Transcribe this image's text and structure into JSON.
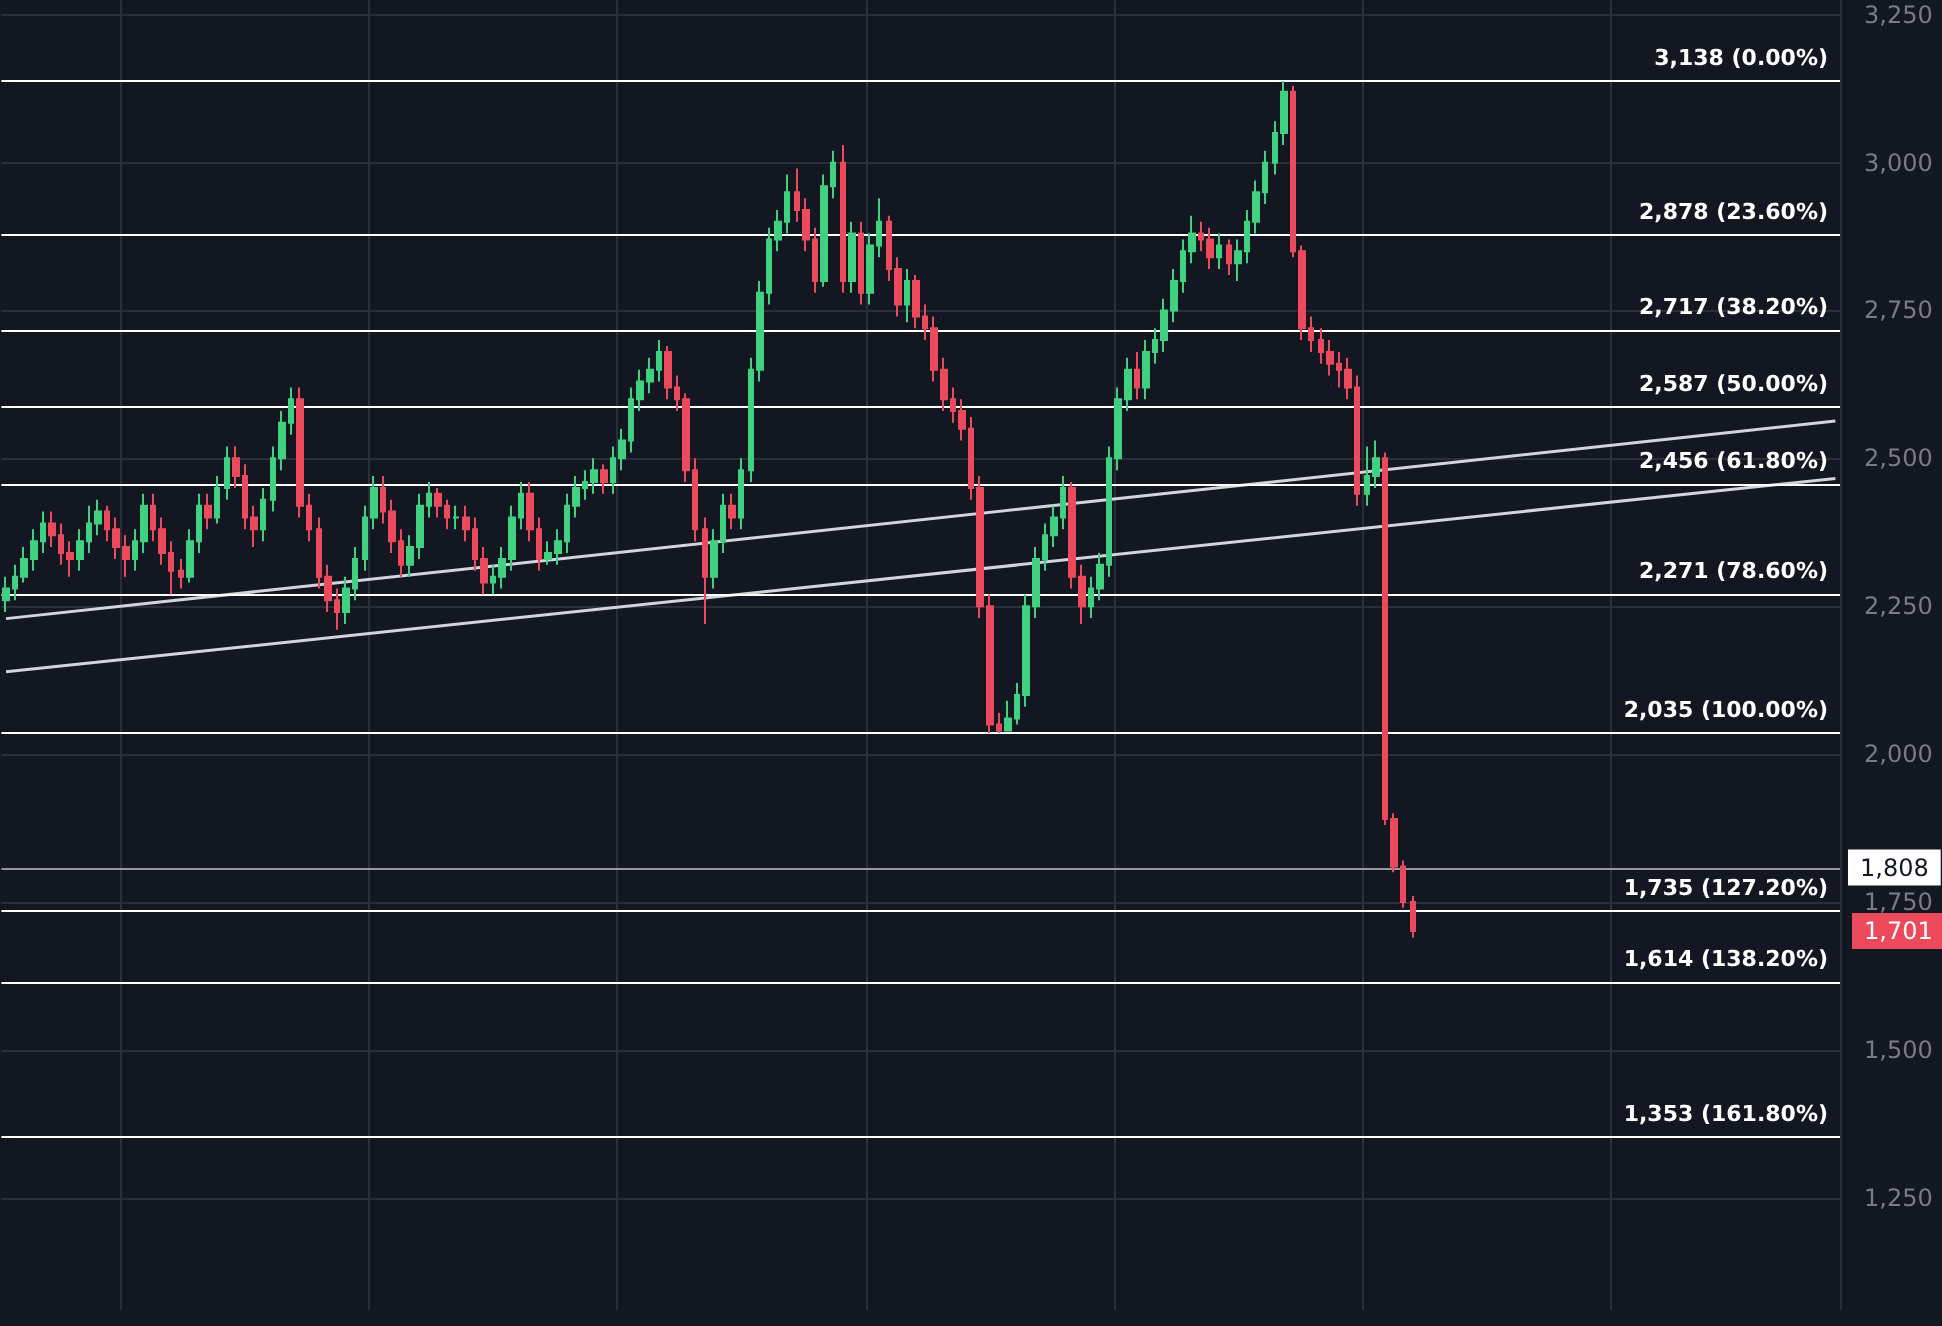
{
  "chart_data": {
    "type": "candlestick",
    "categories": [
      null,
      null,
      null,
      null,
      null,
      null,
      null,
      null,
      null,
      null,
      null,
      null,
      null,
      null,
      null,
      null,
      null,
      null,
      null,
      null,
      null,
      null,
      null,
      null,
      null,
      null,
      null,
      null,
      null,
      null,
      null,
      null,
      null,
      null,
      null,
      null,
      null,
      null,
      null,
      null,
      null,
      null,
      null,
      null,
      null,
      null,
      null,
      null,
      null,
      null,
      null,
      null,
      null,
      null,
      null,
      null,
      null,
      null,
      null,
      null,
      null,
      null,
      null,
      null,
      null,
      null,
      null,
      null,
      null,
      null,
      null,
      null,
      null,
      null,
      null,
      null,
      null,
      null,
      null,
      null,
      null,
      null,
      null,
      null,
      null,
      null,
      null,
      null,
      null,
      null,
      null,
      null,
      null,
      null,
      null,
      null,
      null,
      null,
      null,
      null,
      null,
      null,
      null,
      null,
      null,
      null,
      null,
      null,
      null,
      null,
      null,
      null,
      null,
      null,
      null,
      null,
      null,
      null,
      null,
      null,
      null,
      null,
      null,
      null,
      null,
      null,
      null,
      null,
      null,
      null,
      null,
      null,
      null,
      null,
      null,
      null,
      null,
      null,
      null,
      null,
      null,
      null,
      null,
      null,
      null,
      null,
      null,
      null,
      null,
      null,
      null,
      null,
      null,
      null,
      null,
      null,
      null,
      null,
      null,
      null,
      null,
      null,
      null,
      null,
      null,
      null,
      null,
      null,
      null,
      null,
      null,
      null,
      null,
      null,
      null,
      null,
      null,
      null,
      null,
      null,
      null,
      null,
      null,
      null,
      null,
      null,
      null,
      null,
      null,
      null,
      null,
      null,
      null,
      null,
      null,
      null,
      null,
      null,
      null,
      null
    ],
    "ohlc": [
      [
        2260,
        2300,
        2240,
        2280
      ],
      [
        2280,
        2320,
        2260,
        2300
      ],
      [
        2300,
        2350,
        2290,
        2330
      ],
      [
        2330,
        2380,
        2310,
        2360
      ],
      [
        2360,
        2410,
        2340,
        2390
      ],
      [
        2390,
        2410,
        2350,
        2370
      ],
      [
        2370,
        2390,
        2320,
        2340
      ],
      [
        2340,
        2360,
        2300,
        2330
      ],
      [
        2330,
        2380,
        2310,
        2360
      ],
      [
        2360,
        2420,
        2340,
        2390
      ],
      [
        2390,
        2430,
        2370,
        2410
      ],
      [
        2410,
        2420,
        2360,
        2380
      ],
      [
        2380,
        2400,
        2330,
        2350
      ],
      [
        2350,
        2370,
        2300,
        2330
      ],
      [
        2330,
        2380,
        2310,
        2360
      ],
      [
        2360,
        2440,
        2340,
        2420
      ],
      [
        2420,
        2440,
        2360,
        2380
      ],
      [
        2380,
        2400,
        2320,
        2340
      ],
      [
        2340,
        2360,
        2270,
        2310
      ],
      [
        2310,
        2330,
        2280,
        2300
      ],
      [
        2300,
        2380,
        2290,
        2360
      ],
      [
        2360,
        2440,
        2340,
        2420
      ],
      [
        2420,
        2440,
        2380,
        2400
      ],
      [
        2400,
        2470,
        2390,
        2450
      ],
      [
        2450,
        2520,
        2430,
        2500
      ],
      [
        2500,
        2520,
        2450,
        2470
      ],
      [
        2470,
        2490,
        2380,
        2400
      ],
      [
        2400,
        2420,
        2350,
        2380
      ],
      [
        2380,
        2450,
        2360,
        2430
      ],
      [
        2430,
        2520,
        2410,
        2500
      ],
      [
        2500,
        2580,
        2480,
        2560
      ],
      [
        2560,
        2620,
        2540,
        2600
      ],
      [
        2600,
        2620,
        2400,
        2420
      ],
      [
        2420,
        2440,
        2360,
        2380
      ],
      [
        2380,
        2400,
        2280,
        2300
      ],
      [
        2300,
        2320,
        2240,
        2260
      ],
      [
        2260,
        2280,
        2210,
        2240
      ],
      [
        2240,
        2300,
        2220,
        2280
      ],
      [
        2280,
        2350,
        2260,
        2330
      ],
      [
        2330,
        2420,
        2310,
        2400
      ],
      [
        2400,
        2470,
        2380,
        2450
      ],
      [
        2450,
        2470,
        2390,
        2410
      ],
      [
        2410,
        2430,
        2340,
        2360
      ],
      [
        2360,
        2380,
        2300,
        2320
      ],
      [
        2320,
        2370,
        2300,
        2350
      ],
      [
        2350,
        2440,
        2330,
        2420
      ],
      [
        2420,
        2460,
        2400,
        2440
      ],
      [
        2440,
        2450,
        2400,
        2420
      ],
      [
        2420,
        2430,
        2380,
        2400
      ],
      [
        2400,
        2420,
        2380,
        2400
      ],
      [
        2400,
        2420,
        2360,
        2380
      ],
      [
        2380,
        2400,
        2310,
        2330
      ],
      [
        2330,
        2350,
        2270,
        2290
      ],
      [
        2290,
        2320,
        2270,
        2300
      ],
      [
        2300,
        2350,
        2280,
        2330
      ],
      [
        2330,
        2420,
        2310,
        2400
      ],
      [
        2400,
        2460,
        2380,
        2440
      ],
      [
        2440,
        2460,
        2360,
        2380
      ],
      [
        2380,
        2400,
        2310,
        2330
      ],
      [
        2330,
        2360,
        2320,
        2340
      ],
      [
        2340,
        2380,
        2320,
        2360
      ],
      [
        2360,
        2440,
        2340,
        2420
      ],
      [
        2420,
        2470,
        2400,
        2450
      ],
      [
        2450,
        2480,
        2430,
        2460
      ],
      [
        2460,
        2500,
        2440,
        2480
      ],
      [
        2480,
        2490,
        2440,
        2460
      ],
      [
        2460,
        2520,
        2440,
        2500
      ],
      [
        2500,
        2550,
        2480,
        2530
      ],
      [
        2530,
        2620,
        2510,
        2600
      ],
      [
        2600,
        2650,
        2580,
        2630
      ],
      [
        2630,
        2670,
        2610,
        2650
      ],
      [
        2650,
        2700,
        2630,
        2680
      ],
      [
        2680,
        2690,
        2600,
        2620
      ],
      [
        2620,
        2640,
        2580,
        2600
      ],
      [
        2600,
        2610,
        2460,
        2480
      ],
      [
        2480,
        2500,
        2360,
        2380
      ],
      [
        2380,
        2400,
        2220,
        2300
      ],
      [
        2300,
        2380,
        2280,
        2360
      ],
      [
        2360,
        2440,
        2340,
        2420
      ],
      [
        2420,
        2440,
        2380,
        2400
      ],
      [
        2400,
        2500,
        2380,
        2480
      ],
      [
        2480,
        2670,
        2460,
        2650
      ],
      [
        2650,
        2800,
        2630,
        2780
      ],
      [
        2780,
        2890,
        2760,
        2870
      ],
      [
        2870,
        2920,
        2850,
        2900
      ],
      [
        2900,
        2980,
        2880,
        2950
      ],
      [
        2950,
        2990,
        2900,
        2920
      ],
      [
        2920,
        2940,
        2850,
        2870
      ],
      [
        2870,
        2890,
        2780,
        2800
      ],
      [
        2800,
        2980,
        2790,
        2960
      ],
      [
        2960,
        3020,
        2940,
        3000
      ],
      [
        3000,
        3030,
        2780,
        2800
      ],
      [
        2800,
        2900,
        2780,
        2880
      ],
      [
        2880,
        2900,
        2760,
        2780
      ],
      [
        2780,
        2880,
        2760,
        2860
      ],
      [
        2860,
        2940,
        2840,
        2900
      ],
      [
        2900,
        2910,
        2800,
        2820
      ],
      [
        2820,
        2840,
        2740,
        2760
      ],
      [
        2760,
        2820,
        2730,
        2800
      ],
      [
        2800,
        2810,
        2720,
        2740
      ],
      [
        2740,
        2760,
        2700,
        2720
      ],
      [
        2720,
        2740,
        2630,
        2650
      ],
      [
        2650,
        2670,
        2580,
        2600
      ],
      [
        2600,
        2620,
        2560,
        2580
      ],
      [
        2580,
        2600,
        2530,
        2550
      ],
      [
        2550,
        2570,
        2430,
        2450
      ],
      [
        2450,
        2470,
        2230,
        2250
      ],
      [
        2250,
        2270,
        2035,
        2050
      ],
      [
        2050,
        2070,
        2036,
        2040
      ],
      [
        2040,
        2090,
        2038,
        2060
      ],
      [
        2060,
        2120,
        2050,
        2100
      ],
      [
        2100,
        2270,
        2080,
        2250
      ],
      [
        2250,
        2350,
        2230,
        2330
      ],
      [
        2330,
        2390,
        2310,
        2370
      ],
      [
        2370,
        2420,
        2350,
        2400
      ],
      [
        2400,
        2470,
        2380,
        2450
      ],
      [
        2450,
        2460,
        2280,
        2300
      ],
      [
        2300,
        2320,
        2220,
        2250
      ],
      [
        2250,
        2300,
        2230,
        2280
      ],
      [
        2280,
        2340,
        2260,
        2320
      ],
      [
        2320,
        2520,
        2300,
        2500
      ],
      [
        2500,
        2620,
        2480,
        2600
      ],
      [
        2600,
        2670,
        2580,
        2650
      ],
      [
        2650,
        2680,
        2600,
        2620
      ],
      [
        2620,
        2700,
        2600,
        2680
      ],
      [
        2680,
        2720,
        2660,
        2700
      ],
      [
        2700,
        2770,
        2680,
        2750
      ],
      [
        2750,
        2820,
        2730,
        2800
      ],
      [
        2800,
        2870,
        2780,
        2850
      ],
      [
        2850,
        2910,
        2830,
        2880
      ],
      [
        2880,
        2900,
        2850,
        2870
      ],
      [
        2870,
        2890,
        2820,
        2840
      ],
      [
        2840,
        2880,
        2820,
        2860
      ],
      [
        2860,
        2870,
        2810,
        2830
      ],
      [
        2830,
        2870,
        2800,
        2850
      ],
      [
        2850,
        2920,
        2830,
        2900
      ],
      [
        2900,
        2970,
        2880,
        2950
      ],
      [
        2950,
        3020,
        2930,
        3000
      ],
      [
        3000,
        3070,
        2980,
        3050
      ],
      [
        3050,
        3138,
        3030,
        3120
      ],
      [
        3120,
        3130,
        2840,
        2850
      ],
      [
        2850,
        2860,
        2700,
        2720
      ],
      [
        2720,
        2740,
        2680,
        2700
      ],
      [
        2700,
        2720,
        2660,
        2680
      ],
      [
        2680,
        2700,
        2640,
        2660
      ],
      [
        2660,
        2680,
        2620,
        2650
      ],
      [
        2650,
        2670,
        2600,
        2620
      ],
      [
        2620,
        2640,
        2420,
        2440
      ],
      [
        2440,
        2520,
        2420,
        2470
      ],
      [
        2470,
        2530,
        2450,
        2500
      ],
      [
        2500,
        2510,
        1880,
        1890
      ],
      [
        1890,
        1900,
        1800,
        1810
      ],
      [
        1810,
        1820,
        1740,
        1750
      ],
      [
        1750,
        1760,
        1690,
        1701
      ],
      null,
      null,
      null,
      null,
      null,
      null,
      null,
      null,
      null,
      null,
      null,
      null,
      null,
      null,
      null,
      null,
      null,
      null,
      null,
      null,
      null,
      null,
      null,
      null,
      null,
      null,
      null,
      null,
      null,
      null,
      null,
      null,
      null,
      null,
      null,
      null,
      null,
      null,
      null,
      null,
      null,
      null,
      null,
      null,
      null,
      null
    ],
    "series": [
      {
        "type": "line",
        "color": "#d1d4dc",
        "values": [
          2229,
          null,
          null,
          null,
          null,
          null,
          null,
          null,
          null,
          null,
          null,
          null,
          null,
          null,
          null,
          null,
          null,
          null,
          null,
          null,
          null,
          null,
          null,
          null,
          null,
          null,
          null,
          null,
          null,
          null,
          null,
          null,
          null,
          null,
          null,
          null,
          null,
          null,
          null,
          null,
          null,
          null,
          null,
          null,
          null,
          null,
          null,
          null,
          null,
          null,
          null,
          null,
          null,
          null,
          null,
          null,
          null,
          null,
          null,
          null,
          null,
          null,
          null,
          null,
          null,
          null,
          null,
          null,
          null,
          null,
          null,
          null,
          null,
          null,
          null,
          null,
          null,
          null,
          null,
          null,
          null,
          null,
          null,
          null,
          null,
          null,
          null,
          null,
          null,
          null,
          null,
          null,
          null,
          null,
          null,
          null,
          null,
          null,
          null,
          null,
          null,
          null,
          null,
          null,
          null,
          null,
          null,
          null,
          null,
          null,
          null,
          null,
          null,
          null,
          null,
          null,
          null,
          null,
          null,
          null,
          null,
          null,
          null,
          null,
          null,
          null,
          null,
          null,
          null,
          null,
          null,
          null,
          null,
          null,
          null,
          null,
          null,
          null,
          null,
          null,
          null,
          null,
          null,
          null,
          null,
          null,
          null,
          null,
          null,
          null,
          null,
          null,
          null,
          null,
          null,
          null,
          null,
          null,
          null,
          null,
          null,
          null,
          null,
          null,
          null,
          null,
          null,
          null,
          null,
          null,
          null,
          null,
          null,
          null,
          null,
          null,
          null,
          null,
          null,
          null,
          null,
          null,
          null,
          null,
          null,
          null,
          null,
          null,
          null,
          null,
          null,
          null,
          null,
          null,
          null,
          null,
          null,
          null,
          null,
          2563
        ]
      },
      {
        "type": "line",
        "color": "#d1d4dc",
        "values": [
          2139,
          null,
          null,
          null,
          null,
          null,
          null,
          null,
          null,
          null,
          null,
          null,
          null,
          null,
          null,
          null,
          null,
          null,
          null,
          null,
          null,
          null,
          null,
          null,
          null,
          null,
          null,
          null,
          null,
          null,
          null,
          null,
          null,
          null,
          null,
          null,
          null,
          null,
          null,
          null,
          null,
          null,
          null,
          null,
          null,
          null,
          null,
          null,
          null,
          null,
          null,
          null,
          null,
          null,
          null,
          null,
          null,
          null,
          null,
          null,
          null,
          null,
          null,
          null,
          null,
          null,
          null,
          null,
          null,
          null,
          null,
          null,
          null,
          null,
          null,
          null,
          null,
          null,
          null,
          null,
          null,
          null,
          null,
          null,
          null,
          null,
          null,
          null,
          null,
          null,
          null,
          null,
          null,
          null,
          null,
          null,
          null,
          null,
          null,
          null,
          null,
          null,
          null,
          null,
          null,
          null,
          null,
          null,
          null,
          null,
          null,
          null,
          null,
          null,
          null,
          null,
          null,
          null,
          null,
          null,
          null,
          null,
          null,
          null,
          null,
          null,
          null,
          null,
          null,
          null,
          null,
          null,
          null,
          null,
          null,
          null,
          null,
          null,
          null,
          null,
          null,
          null,
          null,
          null,
          null,
          null,
          null,
          null,
          null,
          null,
          null,
          null,
          null,
          null,
          null,
          null,
          null,
          null,
          null,
          null,
          null,
          null,
          null,
          null,
          null,
          null,
          null,
          null,
          null,
          null,
          null,
          null,
          null,
          null,
          null,
          null,
          null,
          null,
          null,
          null,
          null,
          null,
          null,
          null,
          null,
          null,
          null,
          null,
          null,
          null,
          null,
          null,
          null,
          null,
          null,
          null,
          null,
          null,
          null,
          2466
        ]
      }
    ],
    "marker": "none",
    "ylim": [
      1060,
      3275
    ],
    "yticks": [
      {
        "value": 1250,
        "label": "1,250"
      },
      {
        "value": 1500,
        "label": "1,500"
      },
      {
        "value": 1750,
        "label": "1,750"
      },
      {
        "value": 2000,
        "label": "2,000"
      },
      {
        "value": 2250,
        "label": "2,250"
      },
      {
        "value": 2500,
        "label": "2,500"
      },
      {
        "value": 2750,
        "label": "2,750"
      },
      {
        "value": 3000,
        "label": "3,000"
      },
      {
        "value": 3250,
        "label": "3,250"
      }
    ],
    "grid": true,
    "ref_lines": [
      {
        "axis": "y",
        "value": 3138,
        "label": "3,138 (0.00%)",
        "color": "#ffffff"
      },
      {
        "axis": "y",
        "value": 2878,
        "label": "2,878 (23.60%)",
        "color": "#ffffff"
      },
      {
        "axis": "y",
        "value": 2717,
        "label": "2,717 (38.20%)",
        "color": "#ffffff"
      },
      {
        "axis": "y",
        "value": 2587,
        "label": "2,587 (50.00%)",
        "color": "#ffffff"
      },
      {
        "axis": "y",
        "value": 2456,
        "label": "2,456 (61.80%)",
        "color": "#ffffff"
      },
      {
        "axis": "y",
        "value": 2271,
        "label": "2,271 (78.60%)",
        "color": "#ffffff"
      },
      {
        "axis": "y",
        "value": 2035,
        "label": "2,035 (100.00%)",
        "color": "#ffffff"
      },
      {
        "axis": "y",
        "value": 1735,
        "label": "1,735 (127.20%)",
        "color": "#ffffff"
      },
      {
        "axis": "y",
        "value": 1614,
        "label": "1,614 (138.20%)",
        "color": "#ffffff"
      },
      {
        "axis": "y",
        "value": 1353,
        "label": "1,353 (161.80%)",
        "color": "#ffffff"
      },
      {
        "axis": "y",
        "value": 1808,
        "label": "1,808",
        "color": "#9598a1"
      }
    ],
    "annotations": [
      "1,701"
    ]
  }
}
